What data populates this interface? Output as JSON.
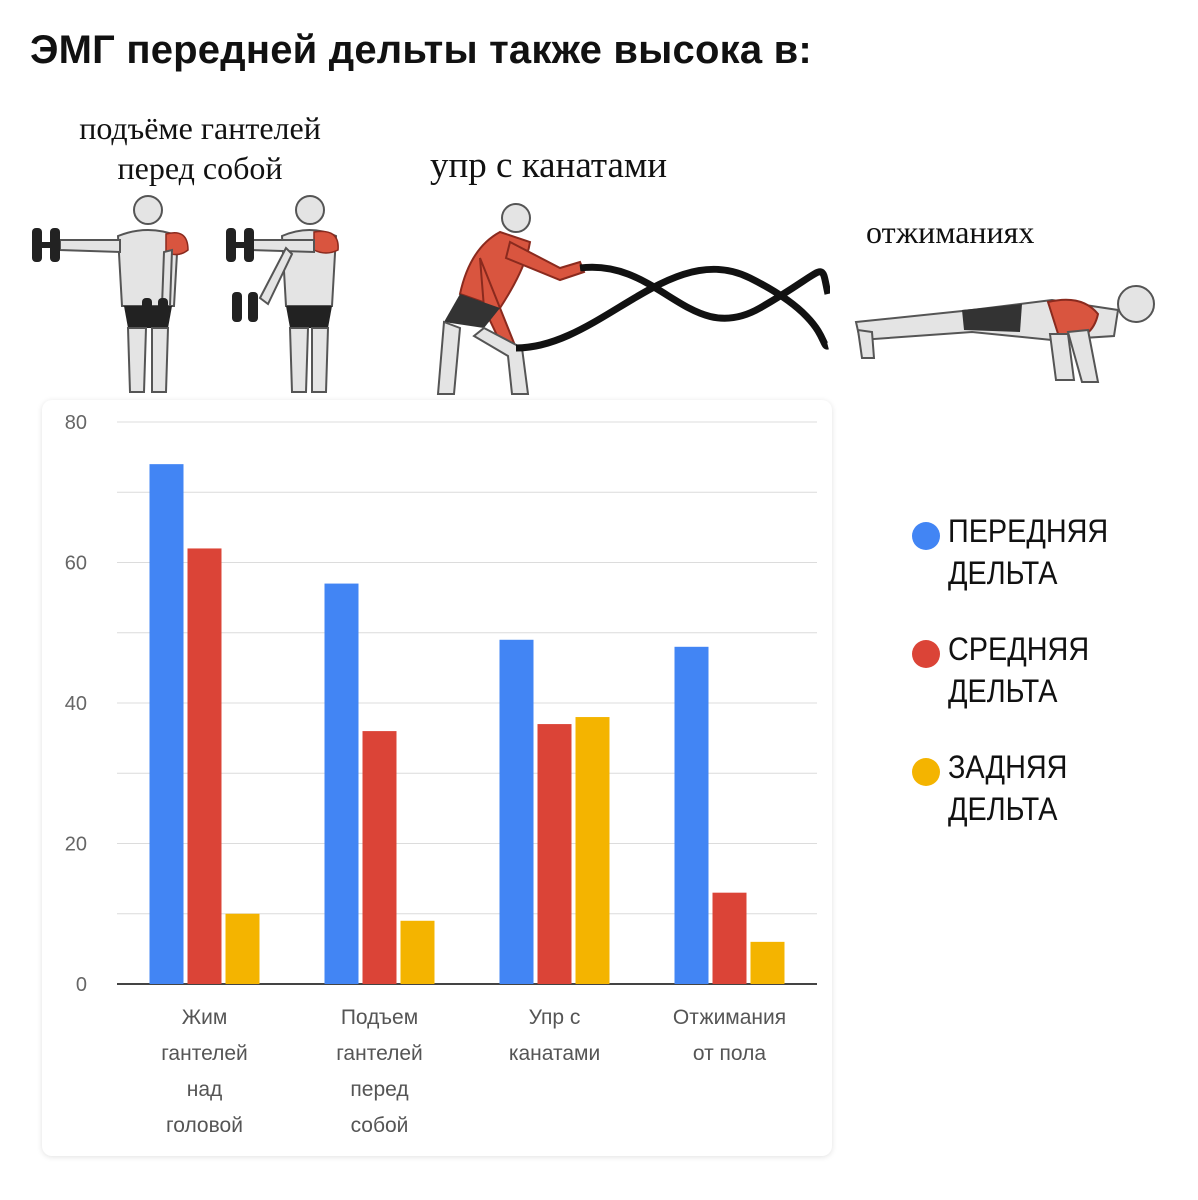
{
  "headline": "ЭМГ передней дельты также высока в:",
  "captions": {
    "raise": "подъёме гантелей\nперед собой",
    "rope": "упр с канатами",
    "pushup": "отжиманиях"
  },
  "colors": {
    "front": "#4285f4",
    "middle": "#db4437",
    "rear": "#f4b400",
    "muscle": "#d9553f",
    "skin": "#e4e4e4",
    "outline": "#555555"
  },
  "legend": [
    {
      "label": "ПЕРЕДНЯЯ ДЕЛЬТА",
      "color": "#4285f4"
    },
    {
      "label": "СРЕДНЯЯ ДЕЛЬТА",
      "color": "#db4437"
    },
    {
      "label": "ЗАДНЯЯ ДЕЛЬТА",
      "color": "#f4b400"
    }
  ],
  "chart_data": {
    "type": "bar",
    "categories": [
      [
        "Жим",
        "гантелей",
        "над",
        "головой"
      ],
      [
        "Подъем",
        "гантелей",
        "перед",
        "собой"
      ],
      [
        "Упр с",
        "канатами"
      ],
      [
        "Отжимания",
        "от пола"
      ]
    ],
    "series": [
      {
        "name": "ПЕРЕДНЯЯ ДЕЛЬТА",
        "color": "#4285f4",
        "values": [
          74,
          57,
          49,
          48
        ]
      },
      {
        "name": "СРЕДНЯЯ ДЕЛЬТА",
        "color": "#db4437",
        "values": [
          62,
          36,
          37,
          13
        ]
      },
      {
        "name": "ЗАДНЯЯ ДЕЛЬТА",
        "color": "#f4b400",
        "values": [
          10,
          9,
          38,
          6
        ]
      }
    ],
    "yticks": [
      0,
      20,
      40,
      60,
      80
    ],
    "ylim": [
      0,
      80
    ],
    "grid": true,
    "legend_position": "right"
  }
}
